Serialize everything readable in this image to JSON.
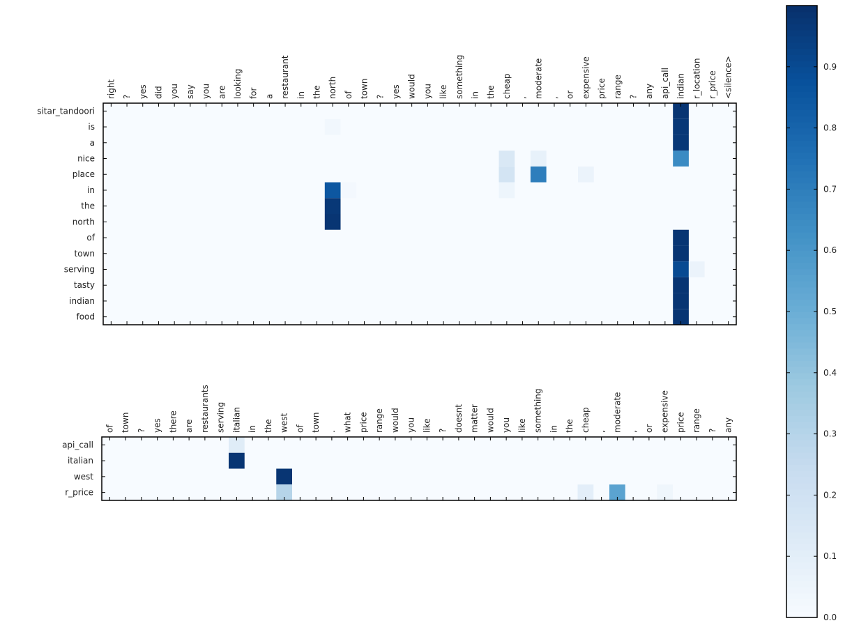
{
  "chart_data": [
    {
      "type": "heatmap",
      "title": "",
      "xlabel": "",
      "ylabel": "",
      "x_labels": [
        "right",
        "?",
        "yes",
        "did",
        "you",
        "say",
        "you",
        "are",
        "looking",
        "for",
        "a",
        "restaurant",
        "in",
        "the",
        "north",
        "of",
        "town",
        "?",
        "yes",
        "would",
        "you",
        "like",
        "something",
        "in",
        "the",
        "cheap",
        ",",
        "moderate",
        ",",
        "or",
        "expensive",
        "price",
        "range",
        "?",
        "any",
        "api_call",
        "indian",
        "r_location",
        "r_price",
        "<silence>"
      ],
      "y_labels": [
        "sitar_tandoori",
        "is",
        "a",
        "nice",
        "place",
        "in",
        "the",
        "north",
        "of",
        "town",
        "serving",
        "tasty",
        "indian",
        "food"
      ],
      "cells": [
        [
          0,
          36,
          0.98
        ],
        [
          1,
          14,
          0.03
        ],
        [
          1,
          36,
          0.97
        ],
        [
          2,
          36,
          0.97
        ],
        [
          3,
          25,
          0.15
        ],
        [
          3,
          27,
          0.08
        ],
        [
          3,
          36,
          0.65
        ],
        [
          4,
          25,
          0.18
        ],
        [
          4,
          27,
          0.7
        ],
        [
          4,
          30,
          0.06
        ],
        [
          5,
          14,
          0.85
        ],
        [
          5,
          15,
          0.02
        ],
        [
          5,
          25,
          0.05
        ],
        [
          6,
          14,
          0.97
        ],
        [
          7,
          14,
          0.98
        ],
        [
          8,
          36,
          0.98
        ],
        [
          9,
          36,
          0.98
        ],
        [
          10,
          36,
          0.9
        ],
        [
          10,
          37,
          0.06
        ],
        [
          11,
          36,
          0.98
        ],
        [
          12,
          36,
          0.98
        ],
        [
          13,
          36,
          0.98
        ]
      ]
    },
    {
      "type": "heatmap",
      "title": "",
      "xlabel": "",
      "ylabel": "",
      "x_labels": [
        "of",
        "town",
        "?",
        "yes",
        "there",
        "are",
        "restaurants",
        "serving",
        "italian",
        "in",
        "the",
        "west",
        "of",
        "town",
        ".",
        "what",
        "price",
        "range",
        "would",
        "you",
        "like",
        "?",
        "doesnt",
        "matter",
        "would",
        "you",
        "like",
        "something",
        "in",
        "the",
        "cheap",
        ",",
        "moderate",
        ",",
        "or",
        "expensive",
        "price",
        "range",
        "?",
        "any"
      ],
      "y_labels": [
        "api_call",
        "italian",
        "west",
        "r_price"
      ],
      "cells": [
        [
          0,
          8,
          0.12
        ],
        [
          1,
          8,
          0.98
        ],
        [
          2,
          11,
          0.98
        ],
        [
          3,
          11,
          0.3
        ],
        [
          3,
          30,
          0.1
        ],
        [
          3,
          32,
          0.55
        ],
        [
          3,
          35,
          0.04
        ]
      ]
    }
  ],
  "colorbar": {
    "min": 0.0,
    "max": 1.0,
    "ticks": [
      "0.0",
      "0.1",
      "0.2",
      "0.3",
      "0.4",
      "0.5",
      "0.6",
      "0.7",
      "0.8",
      "0.9"
    ],
    "colormap": "Blues",
    "stops": [
      "#f7fbff",
      "#deebf7",
      "#c6dbef",
      "#9ecae1",
      "#6baed6",
      "#4292c6",
      "#2171b5",
      "#08519c",
      "#08306b"
    ]
  }
}
